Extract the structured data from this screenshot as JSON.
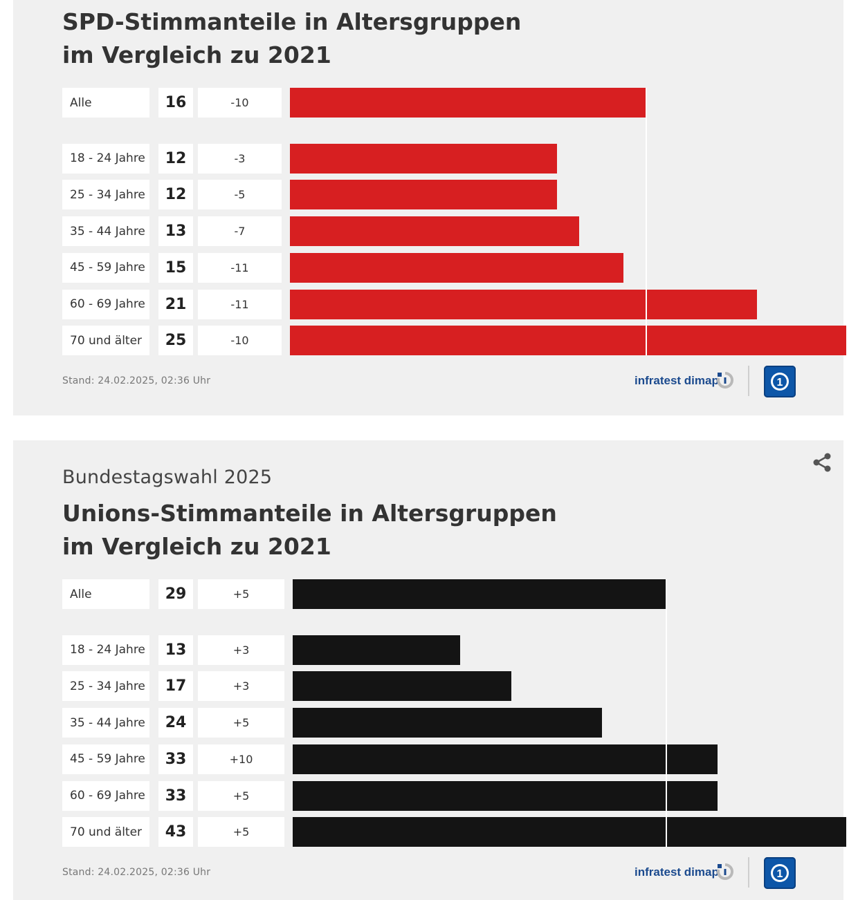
{
  "charts": [
    {
      "supertitle": "",
      "title_lines": [
        "SPD-Stimmanteile in Altersgruppen",
        "im Vergleich zu 2021"
      ],
      "bar_color": "#d71f21",
      "stand": "Stand:  24.02.2025, 02:36 Uhr",
      "source_logo": "infratest dimap",
      "broadcaster_logo": "tagesschau-icon"
    },
    {
      "supertitle": "Bundestagswahl 2025",
      "title_lines": [
        "Unions-Stimmanteile in Altersgruppen",
        "im Vergleich zu 2021"
      ],
      "bar_color": "#141414",
      "stand": "Stand:  24.02.2025, 02:36 Uhr",
      "source_logo": "infratest dimap",
      "broadcaster_logo": "tagesschau-icon",
      "share_icon": "share-icon"
    }
  ],
  "chart_data": [
    {
      "type": "bar",
      "orientation": "horizontal",
      "title": "SPD-Stimmanteile in Altersgruppen im Vergleich zu 2021",
      "categories": [
        "Alle",
        "18 - 24 Jahre",
        "25 - 34 Jahre",
        "35 - 44 Jahre",
        "45 - 59 Jahre",
        "60 - 69 Jahre",
        "70 und älter"
      ],
      "values": [
        16,
        12,
        12,
        13,
        15,
        21,
        25
      ],
      "change_labels": [
        "-10",
        "-3",
        "-5",
        "-7",
        "-11",
        "-11",
        "-10"
      ],
      "reference_value": 16,
      "xlim": [
        0,
        25
      ]
    },
    {
      "type": "bar",
      "orientation": "horizontal",
      "title": "Unions-Stimmanteile in Altersgruppen im Vergleich zu 2021",
      "categories": [
        "Alle",
        "18 - 24 Jahre",
        "25 - 34 Jahre",
        "35 - 44 Jahre",
        "45 - 59 Jahre",
        "60 - 69 Jahre",
        "70 und älter"
      ],
      "values": [
        29,
        13,
        17,
        24,
        33,
        33,
        43
      ],
      "change_labels": [
        "+5",
        "+3",
        "+3",
        "+5",
        "+10",
        "+5",
        "+5"
      ],
      "reference_value": 29,
      "xlim": [
        0,
        43
      ]
    }
  ]
}
